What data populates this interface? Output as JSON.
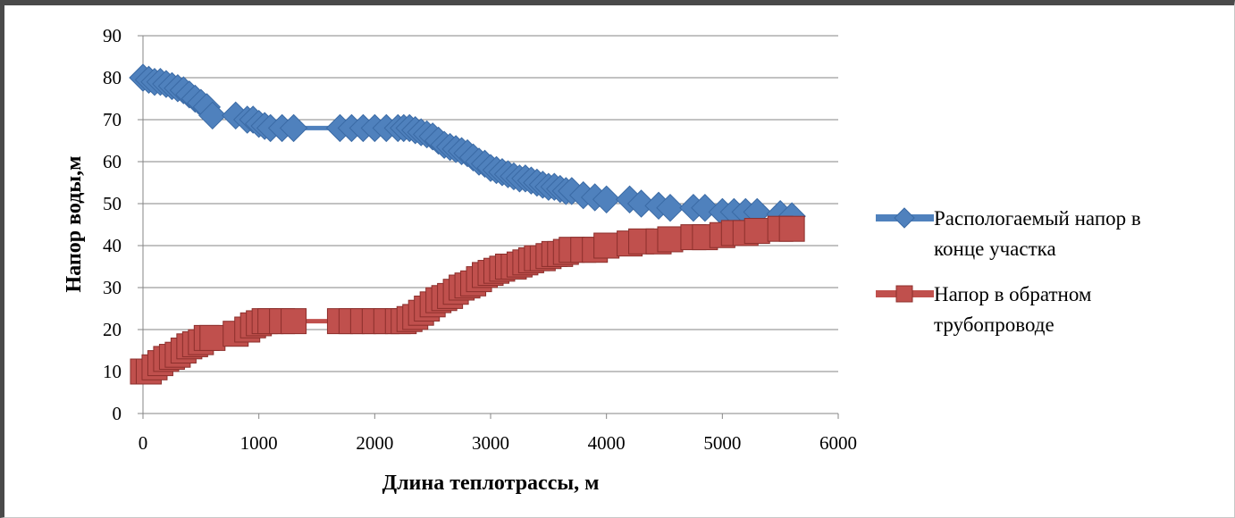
{
  "chart_data": {
    "type": "line",
    "xlabel": "Длина теплотрассы, м",
    "ylabel": "Напор воды,м",
    "xlim": [
      0,
      6000
    ],
    "ylim": [
      0,
      90
    ],
    "xticks": [
      0,
      1000,
      2000,
      3000,
      4000,
      5000,
      6000
    ],
    "yticks": [
      0,
      10,
      20,
      30,
      40,
      50,
      60,
      70,
      80,
      90
    ],
    "grid": "horizontal",
    "legend_position": "right",
    "colors": {
      "series1": "#4f81bd",
      "series2": "#c0504d"
    },
    "series": [
      {
        "name": "Распологаемый напор в конце участка",
        "marker": "diamond",
        "x": [
          0,
          50,
          100,
          150,
          200,
          250,
          300,
          350,
          400,
          450,
          500,
          550,
          600,
          800,
          900,
          950,
          1000,
          1050,
          1100,
          1200,
          1300,
          1700,
          1800,
          1900,
          2000,
          2100,
          2200,
          2250,
          2300,
          2350,
          2400,
          2450,
          2500,
          2550,
          2600,
          2650,
          2700,
          2750,
          2800,
          2850,
          2900,
          2950,
          3000,
          3050,
          3100,
          3150,
          3200,
          3250,
          3300,
          3350,
          3400,
          3450,
          3500,
          3550,
          3600,
          3650,
          3700,
          3800,
          3900,
          4000,
          4200,
          4300,
          4450,
          4550,
          4750,
          4850,
          5000,
          5100,
          5200,
          5300,
          5500,
          5600
        ],
        "y": [
          80,
          79.5,
          79,
          79,
          78.5,
          78,
          77.5,
          77,
          76,
          75,
          74,
          73,
          71,
          71,
          70,
          70,
          69,
          68.5,
          68,
          68,
          68,
          68,
          68,
          68,
          68,
          68,
          68,
          68,
          68,
          67.5,
          67,
          66.5,
          66,
          65,
          64,
          63.5,
          63,
          62.5,
          62,
          61,
          60,
          59.5,
          58.5,
          58,
          57.5,
          57,
          56.5,
          56,
          56,
          55.5,
          55,
          54.5,
          54,
          54,
          53.5,
          53,
          53,
          52,
          51.5,
          51,
          51,
          50,
          49.5,
          49,
          49,
          49,
          48,
          48,
          48,
          48,
          47.5,
          47
        ]
      },
      {
        "name": "Напор в обратном трубопроводе",
        "marker": "square",
        "x": [
          0,
          50,
          100,
          150,
          200,
          250,
          300,
          350,
          400,
          450,
          500,
          550,
          600,
          800,
          900,
          950,
          1000,
          1050,
          1100,
          1200,
          1300,
          1700,
          1800,
          1900,
          2000,
          2100,
          2200,
          2250,
          2300,
          2350,
          2400,
          2450,
          2500,
          2550,
          2600,
          2650,
          2700,
          2750,
          2800,
          2850,
          2900,
          2950,
          3000,
          3050,
          3100,
          3150,
          3200,
          3250,
          3300,
          3350,
          3400,
          3450,
          3500,
          3550,
          3600,
          3650,
          3700,
          3800,
          3900,
          4000,
          4200,
          4300,
          4450,
          4550,
          4750,
          4850,
          5000,
          5100,
          5200,
          5300,
          5500,
          5600
        ],
        "y": [
          10,
          10,
          11,
          12,
          13,
          13.5,
          14,
          15,
          16,
          16.5,
          17,
          18,
          18,
          19,
          20,
          21,
          21.5,
          22,
          22,
          22,
          22,
          22,
          22,
          22,
          22,
          22,
          22,
          22,
          22.5,
          23,
          24,
          25,
          26,
          27,
          27.5,
          28,
          29,
          30,
          30.5,
          31,
          32,
          33,
          33.5,
          34,
          34.5,
          35,
          35,
          35.5,
          36,
          36.5,
          37,
          37,
          37.5,
          38,
          38,
          38.5,
          39,
          39,
          39,
          40,
          40.5,
          41,
          41,
          41.5,
          42,
          42,
          42.5,
          43,
          43,
          43.5,
          44,
          44
        ]
      }
    ]
  }
}
